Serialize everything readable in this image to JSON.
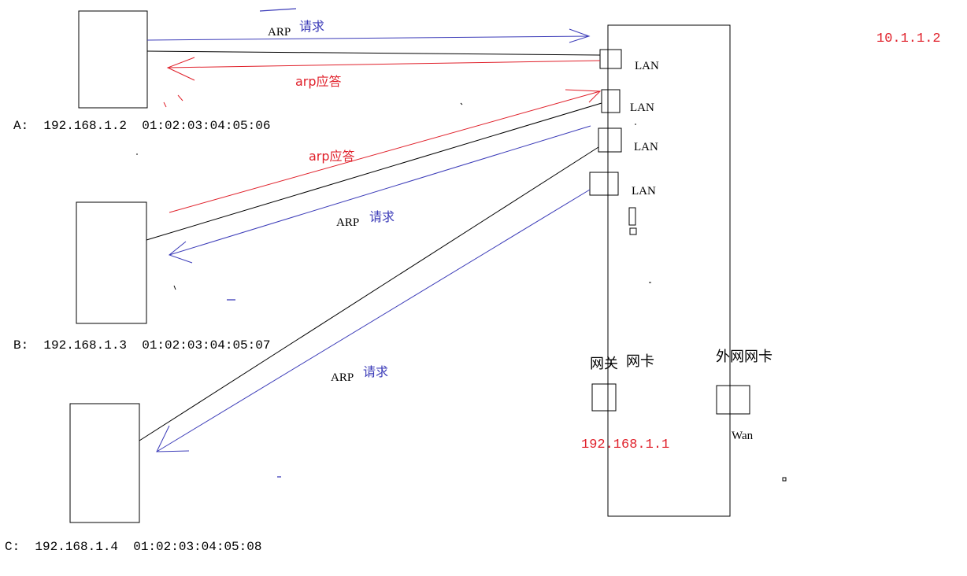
{
  "hosts": {
    "a": {
      "label": "A:  192.168.1.2  01:02:03:04:05:06"
    },
    "b": {
      "label": "B:  192.168.1.3  01:02:03:04:05:07"
    },
    "c": {
      "label": "C:  192.168.1.4  01:02:03:04:05:08"
    }
  },
  "router": {
    "lan_ports": [
      {
        "label": "LAN"
      },
      {
        "label": "LAN"
      },
      {
        "label": "LAN"
      },
      {
        "label": "LAN"
      }
    ],
    "gateway_nic": {
      "label_1": "网关",
      "label_2": "网卡",
      "ip": "192.168.1.1"
    },
    "wan_nic": {
      "label": "外网网卡",
      "port_label": "Wan"
    },
    "external_ip": "10.1.1.2"
  },
  "messages": {
    "a_request": {
      "word": "ARP",
      "cjk": "请求"
    },
    "a_reply": {
      "text": "arp应答"
    },
    "b_reply": {
      "text": "arp应答"
    },
    "b_request": {
      "word": "ARP",
      "cjk": "请求"
    },
    "c_request": {
      "word": "ARP",
      "cjk": "请求"
    }
  },
  "colors": {
    "request": "#3b3bb8",
    "reply": "#e0202a",
    "wire": "#000000"
  }
}
